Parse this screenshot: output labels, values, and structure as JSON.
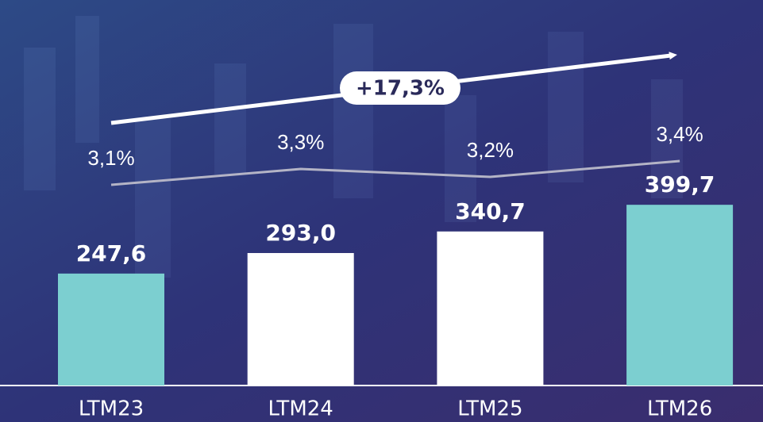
{
  "chart_data": {
    "type": "bar",
    "categories": [
      "LTM23",
      "LTM24",
      "LTM25",
      "LTM26"
    ],
    "series": [
      {
        "type": "bar",
        "colors": [
          "#7ccfd0",
          "#ffffff",
          "#ffffff",
          "#7ccfd0"
        ],
        "values": [
          247.6,
          293.0,
          340.7,
          399.7
        ],
        "value_labels": [
          "247,6",
          "293,0",
          "340,7",
          "399,7"
        ]
      },
      {
        "type": "line",
        "color": "#b4b4c6",
        "values": [
          3.1,
          3.3,
          3.2,
          3.4
        ],
        "value_labels": [
          "3,1%",
          "3,3%",
          "3,2%",
          "3,4%"
        ]
      }
    ],
    "annotation": "+17,3%"
  }
}
